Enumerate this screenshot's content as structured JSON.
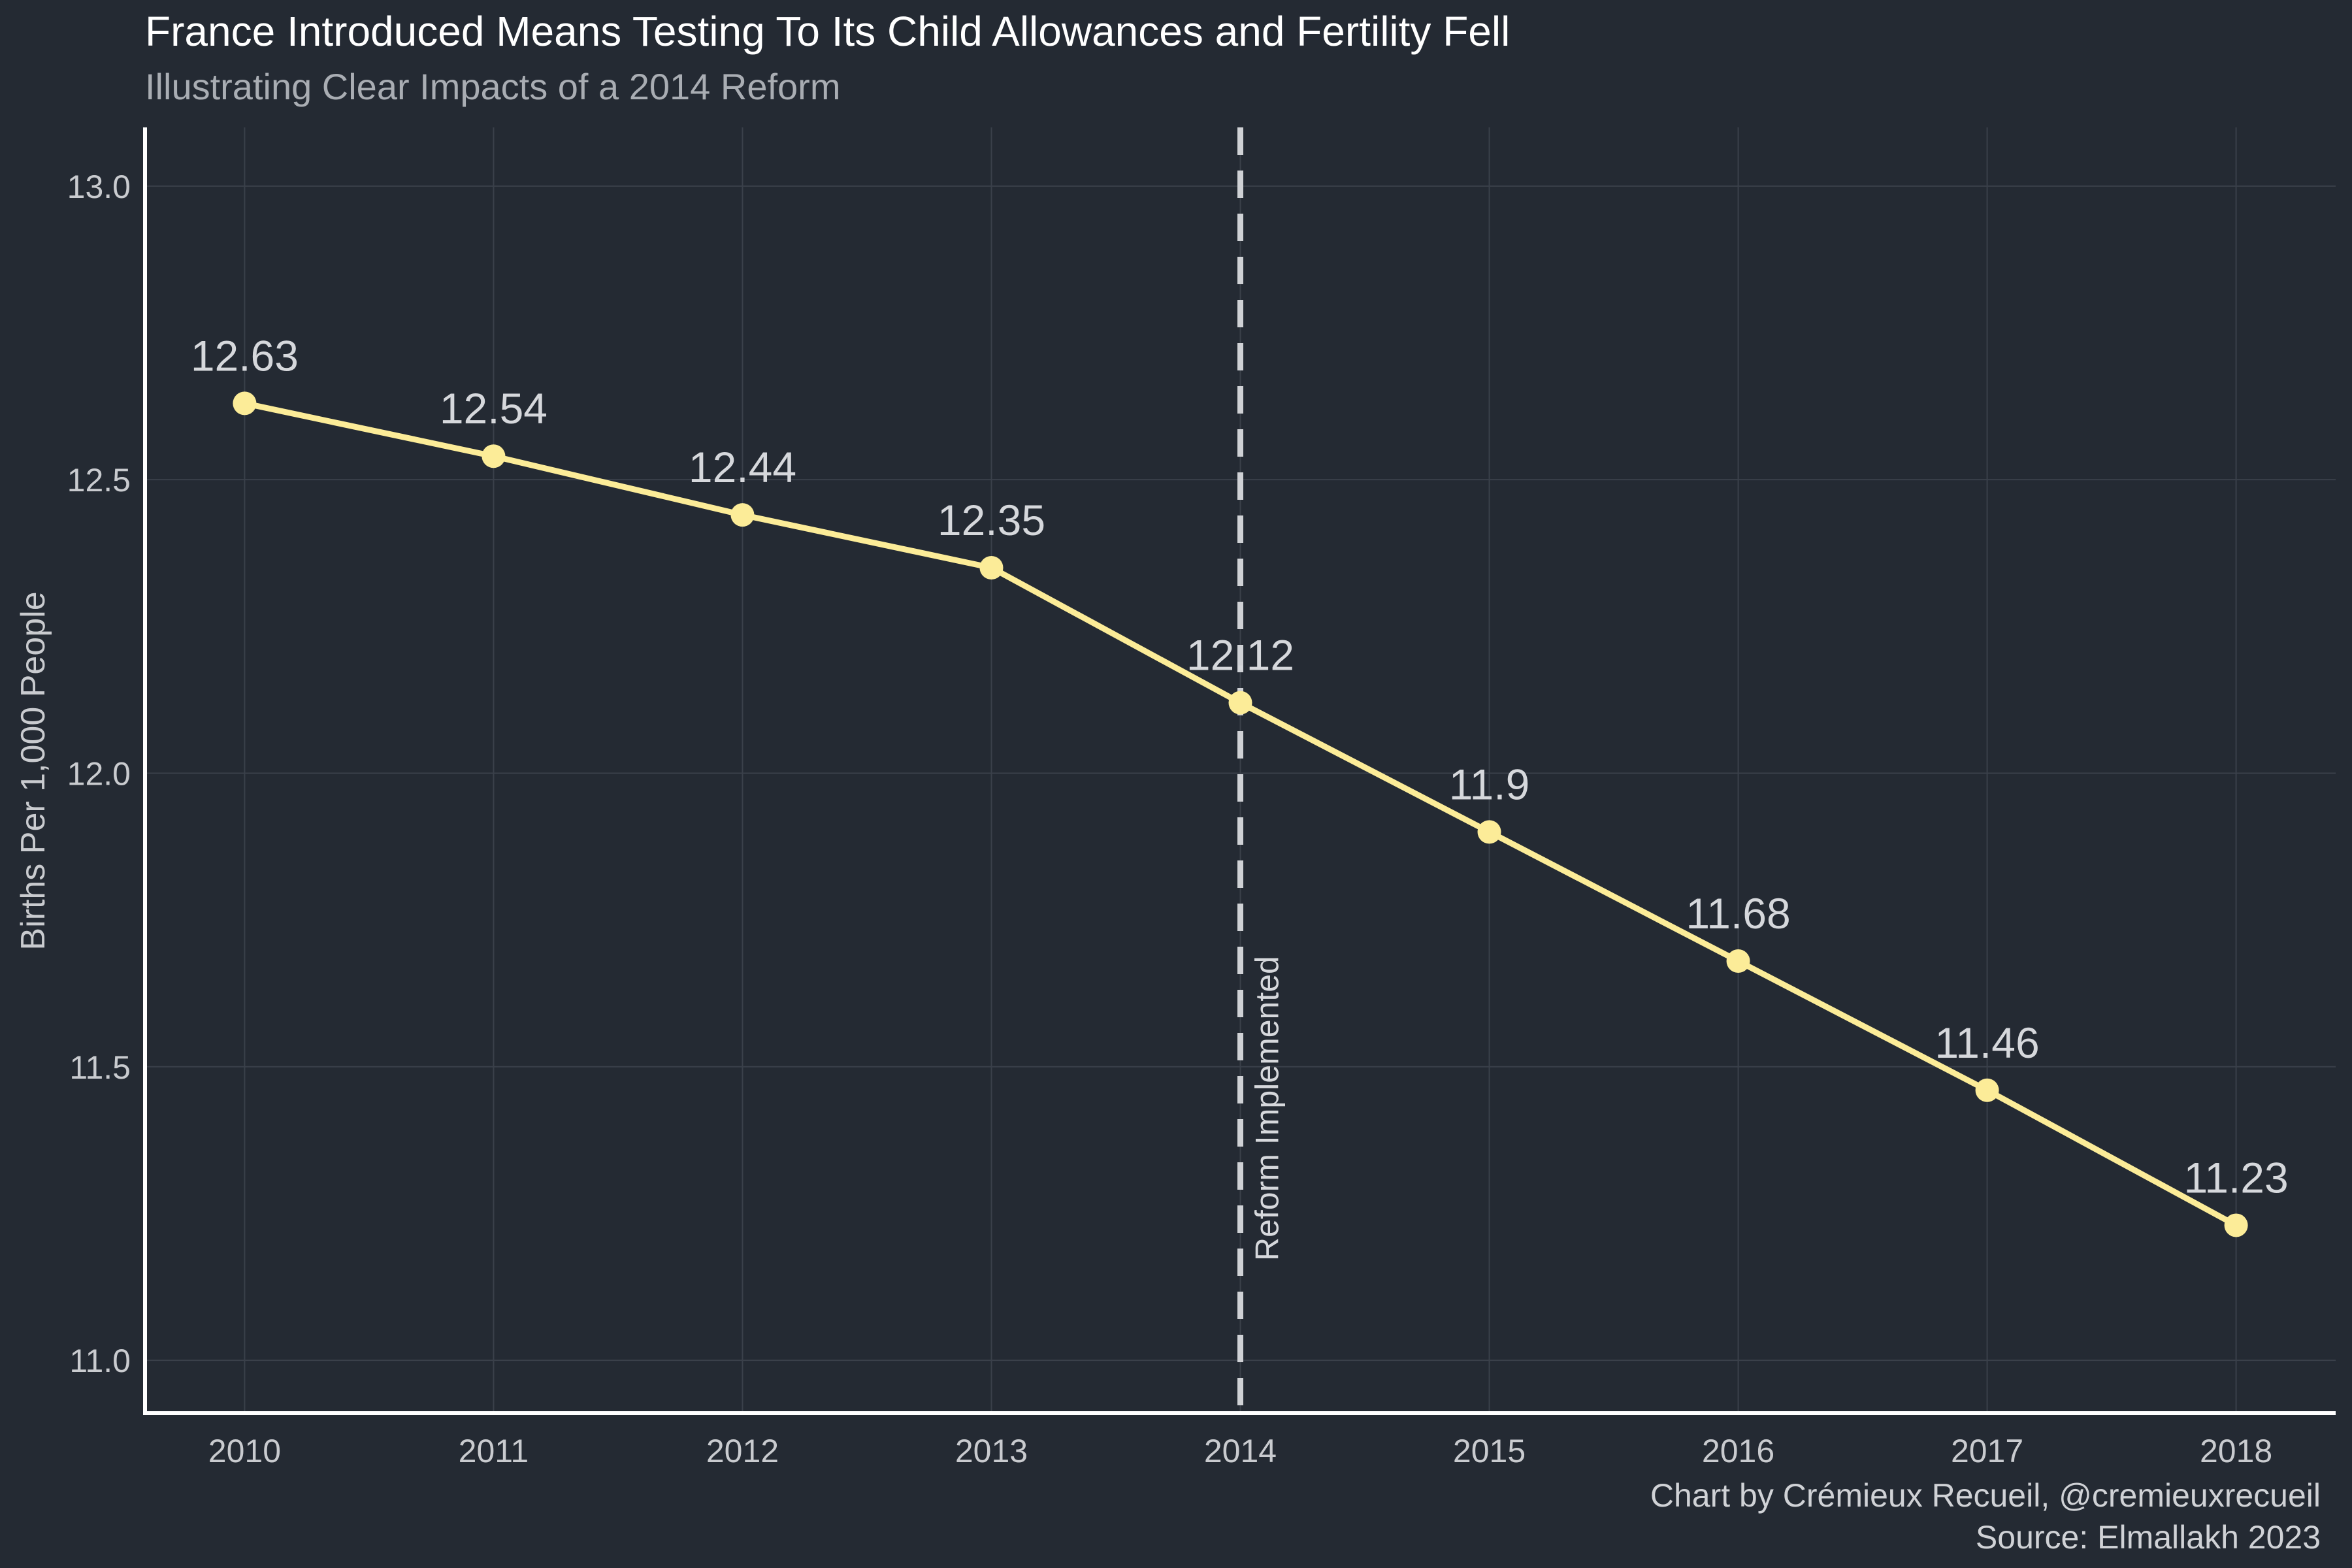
{
  "chart_data": {
    "type": "line",
    "title": "France Introduced Means Testing To Its Child Allowances and Fertility Fell",
    "subtitle": "Illustrating Clear Impacts of a 2014 Reform",
    "xlabel": "",
    "ylabel": "Births Per 1,000 People",
    "x": [
      2010,
      2011,
      2012,
      2013,
      2014,
      2015,
      2016,
      2017,
      2018
    ],
    "series": [
      {
        "values": [
          12.63,
          12.54,
          12.44,
          12.35,
          12.12,
          11.9,
          11.68,
          11.46,
          11.23
        ],
        "data_labels": [
          "12.63",
          "12.54",
          "12.44",
          "12.35",
          "12.12",
          "11.9",
          "11.68",
          "11.46",
          "11.23"
        ],
        "color": "#fcec98"
      }
    ],
    "xticks": [
      "2010",
      "2011",
      "2012",
      "2013",
      "2014",
      "2015",
      "2016",
      "2017",
      "2018"
    ],
    "yticks": [
      "11.0",
      "11.5",
      "12.0",
      "12.5",
      "13.0"
    ],
    "ylim": [
      10.91,
      13.1
    ],
    "xlim": [
      2009.6,
      2018.4
    ],
    "grid": true,
    "annotation": {
      "x": 2014,
      "text": "Reform Implemented",
      "line_style": "dashed",
      "color": "#cfd1d5"
    },
    "caption": [
      "Chart by Crémieux Recueil, @cremieuxrecueil",
      "Source: Elmallakh 2023"
    ],
    "colors": {
      "background": "#242a33",
      "line": "#fcec98",
      "axis": "#ffffff",
      "grid": "#3a404a"
    }
  }
}
